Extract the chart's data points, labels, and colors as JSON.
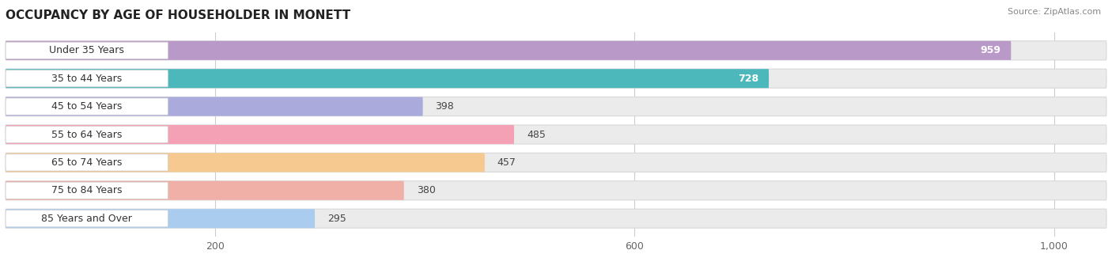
{
  "title": "OCCUPANCY BY AGE OF HOUSEHOLDER IN MONETT",
  "source": "Source: ZipAtlas.com",
  "categories": [
    "Under 35 Years",
    "35 to 44 Years",
    "45 to 54 Years",
    "55 to 64 Years",
    "65 to 74 Years",
    "75 to 84 Years",
    "85 Years and Over"
  ],
  "values": [
    959,
    728,
    398,
    485,
    457,
    380,
    295
  ],
  "bar_colors": [
    "#b899c8",
    "#4db8bc",
    "#aaaadd",
    "#f4a0b5",
    "#f5c990",
    "#f0b0a8",
    "#aaccee"
  ],
  "bar_bg_color": "#ebebeb",
  "bar_bg_border_color": "#d8d8d8",
  "label_colors": [
    "white",
    "white",
    "#555555",
    "#555555",
    "#555555",
    "#555555",
    "#555555"
  ],
  "xlim_max": 1050,
  "xticks": [
    200,
    600,
    1000
  ],
  "xticklabels": [
    "200",
    "600",
    "1,000"
  ],
  "background_color": "#ffffff",
  "grid_color": "#cccccc",
  "title_fontsize": 11,
  "bar_label_fontsize": 9,
  "category_fontsize": 9,
  "figsize": [
    14.06,
    3.4
  ],
  "dpi": 100
}
